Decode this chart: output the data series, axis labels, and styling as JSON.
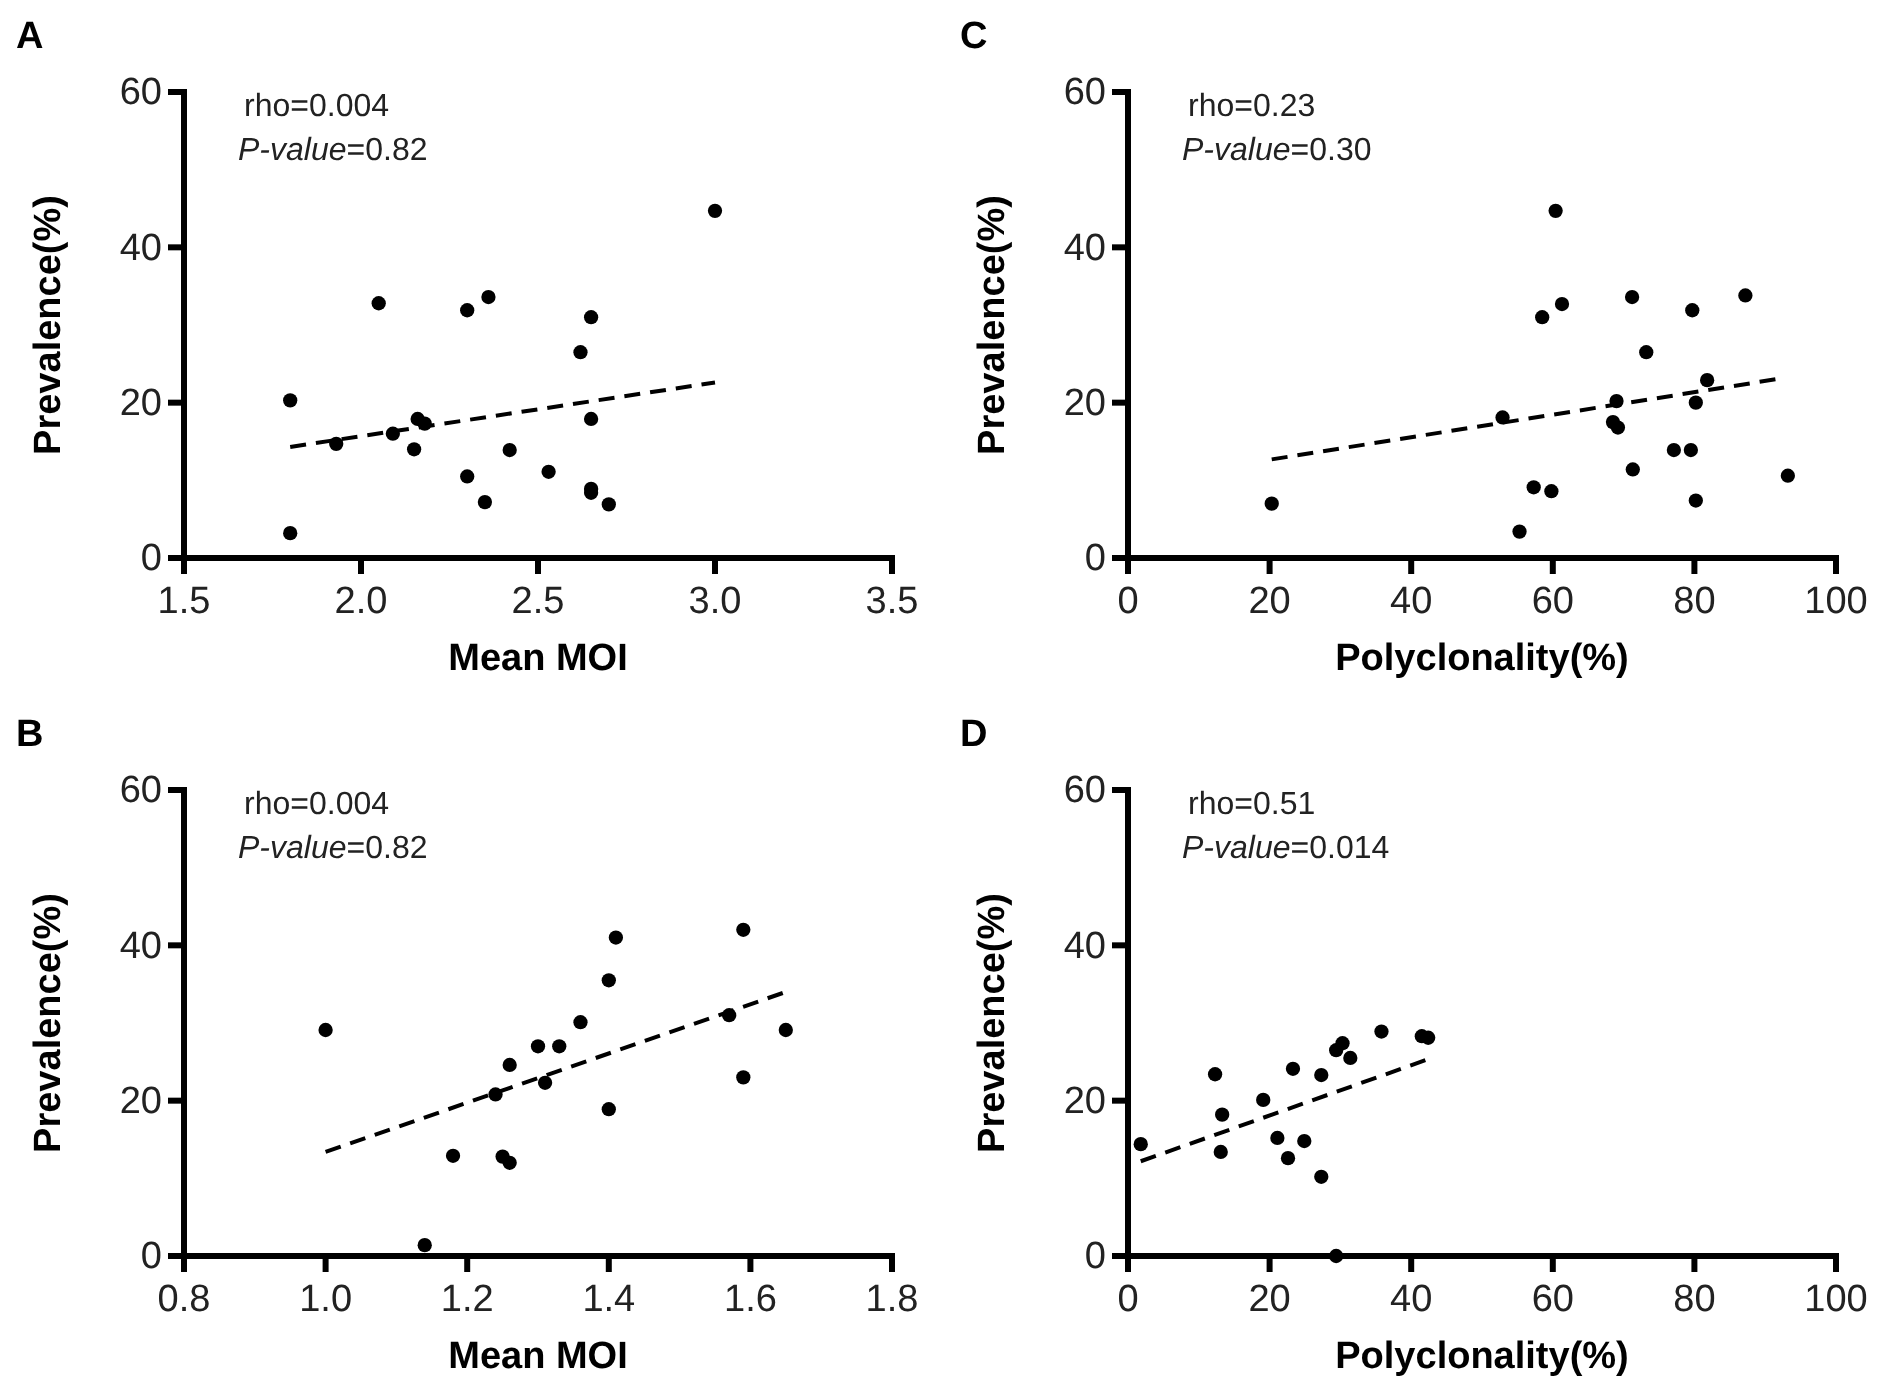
{
  "chart_data": [
    {
      "type": "scatter",
      "title": "A",
      "xlabel": "Mean MOI",
      "ylabel": "Prevalence(%)",
      "annotations": [
        "rho=0.004",
        "P-value=0.82"
      ],
      "xlim": [
        1.5,
        3.5
      ],
      "xticks": [
        1.5,
        {
          "value": 2,
          "label": "2.0"
        },
        2.5,
        {
          "value": 3,
          "label": "3.0"
        },
        3.5
      ],
      "ylim": [
        0,
        60
      ],
      "yticks": [
        0,
        20,
        40,
        60
      ],
      "marker": "circle",
      "series": [
        {
          "color": "#000000",
          "x": [
            1.8,
            1.8,
            1.93,
            2.05,
            2.09,
            2.15,
            2.16,
            2.18,
            2.3,
            2.3,
            2.36,
            2.35,
            2.42,
            2.53,
            2.62,
            2.65,
            2.65,
            2.65,
            2.65,
            2.7,
            3.0
          ],
          "values": [
            20.3,
            3.2,
            14.7,
            32.8,
            16.0,
            14.0,
            17.9,
            17.3,
            31.9,
            10.5,
            33.6,
            7.2,
            13.9,
            11.1,
            26.5,
            31.0,
            17.9,
            8.9,
            8.4,
            6.9,
            44.7
          ]
        },
        {
          "type": "line",
          "color": "#000000",
          "line_style": "dashed",
          "marker": "none",
          "x": [
            1.8,
            3.0
          ],
          "values": [
            14.3,
            22.6
          ]
        }
      ]
    },
    {
      "type": "scatter",
      "title": "C",
      "xlabel": "Polyclonality(%)",
      "ylabel": "Prevalence(%)",
      "annotations": [
        "rho=0.23",
        "P-value=0.30"
      ],
      "xlim": [
        0,
        100
      ],
      "xticks": [
        0,
        20,
        40,
        60,
        80,
        100
      ],
      "ylim": [
        0,
        60
      ],
      "yticks": [
        0,
        20,
        40,
        60
      ],
      "marker": "circle",
      "series": [
        {
          "color": "#000000",
          "x": [
            20.3,
            52.9,
            55.3,
            57.3,
            58.5,
            59.8,
            60.4,
            61.3,
            69.0,
            68.5,
            69.2,
            71.2,
            71.3,
            73.2,
            77.1,
            79.5,
            79.7,
            80.2,
            80.2,
            81.8,
            87.2,
            93.2
          ],
          "values": [
            7.0,
            18.1,
            3.4,
            9.1,
            31.0,
            8.6,
            44.7,
            32.7,
            20.2,
            17.5,
            16.8,
            33.6,
            11.4,
            26.5,
            13.9,
            13.9,
            31.9,
            20.0,
            7.4,
            22.9,
            33.8,
            10.6
          ]
        },
        {
          "type": "line",
          "color": "#000000",
          "line_style": "dashed",
          "marker": "none",
          "x": [
            20.3,
            92.1
          ],
          "values": [
            12.7,
            23.1
          ]
        }
      ]
    },
    {
      "type": "scatter",
      "title": "B",
      "xlabel": "Mean MOI",
      "ylabel": "Prevalence(%)",
      "annotations": [
        "rho=0.004",
        "P-value=0.82"
      ],
      "xlim": [
        0.8,
        1.8
      ],
      "xticks": [
        0.8,
        {
          "value": 1,
          "label": "1.0"
        },
        1.2,
        1.4,
        1.6,
        1.8
      ],
      "ylim": [
        0,
        60
      ],
      "yticks": [
        0,
        20,
        40,
        60
      ],
      "marker": "circle",
      "series": [
        {
          "color": "#000000",
          "x": [
            1.0,
            1.14,
            1.18,
            1.24,
            1.25,
            1.26,
            1.26,
            1.3,
            1.31,
            1.33,
            1.36,
            1.4,
            1.4,
            1.41,
            1.57,
            1.59,
            1.59,
            1.65
          ],
          "values": [
            29.1,
            1.4,
            12.9,
            20.8,
            12.8,
            24.6,
            12.0,
            27.0,
            22.3,
            27.0,
            30.1,
            35.5,
            18.9,
            41.0,
            31.0,
            42.0,
            23.0,
            29.1
          ]
        },
        {
          "type": "line",
          "color": "#000000",
          "line_style": "dashed",
          "marker": "none",
          "x": [
            1.0,
            1.65
          ],
          "values": [
            13.4,
            34.0
          ]
        }
      ]
    },
    {
      "type": "scatter",
      "title": "D",
      "xlabel": "Polyclonality(%)",
      "ylabel": "Prevalence(%)",
      "annotations": [
        "rho=0.51",
        "P-value=0.014"
      ],
      "xlim": [
        0,
        100
      ],
      "xticks": [
        0,
        20,
        40,
        60,
        80,
        100
      ],
      "ylim": [
        0,
        60
      ],
      "yticks": [
        0,
        20,
        40,
        60
      ],
      "marker": "circle",
      "series": [
        {
          "color": "#000000",
          "x": [
            1.8,
            12.3,
            13.3,
            13.1,
            19.1,
            21.1,
            22.6,
            23.3,
            24.9,
            27.3,
            27.3,
            29.4,
            29.4,
            30.3,
            31.4,
            35.8,
            41.5,
            42.4
          ],
          "values": [
            14.4,
            23.4,
            18.2,
            13.4,
            20.1,
            15.2,
            12.6,
            24.1,
            14.8,
            23.3,
            10.2,
            0,
            26.5,
            27.4,
            25.5,
            28.9,
            28.3,
            28.1
          ]
        },
        {
          "type": "line",
          "color": "#000000",
          "line_style": "dashed",
          "marker": "none",
          "x": [
            1.8,
            42.9
          ],
          "values": [
            12.2,
            25.5
          ]
        }
      ]
    }
  ]
}
